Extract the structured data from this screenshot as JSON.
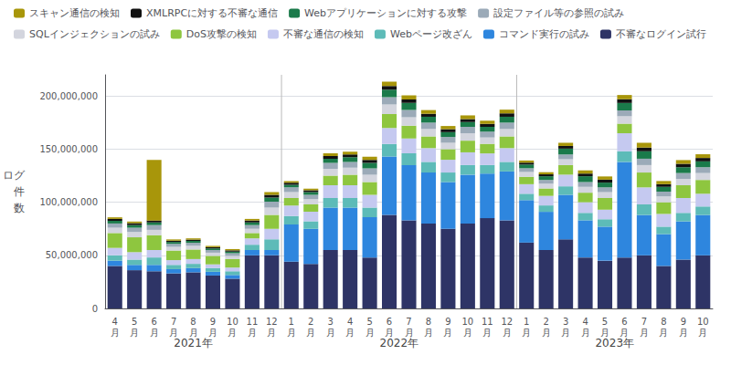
{
  "chart_data": {
    "type": "bar",
    "stacked": true,
    "ylabel": "ログ\n件\n数",
    "categories": [
      "4\n月",
      "5\n月",
      "6\n月",
      "7\n月",
      "8\n月",
      "9\n月",
      "10\n月",
      "11\n月",
      "12\n月",
      "1\n月",
      "2\n月",
      "3\n月",
      "4\n月",
      "5\n月",
      "6\n月",
      "7\n月",
      "8\n月",
      "9\n月",
      "10\n月",
      "11\n月",
      "12\n月",
      "1\n月",
      "2\n月",
      "3\n月",
      "4\n月",
      "5\n月",
      "6\n月",
      "7\n月",
      "8\n月",
      "9\n月",
      "10\n月"
    ],
    "annotations": [
      {
        "text": "2021年",
        "start": 0,
        "end": 9
      },
      {
        "text": "2022年",
        "start": 9,
        "end": 21
      },
      {
        "text": "2023年",
        "start": 21,
        "end": 31
      }
    ],
    "series": [
      {
        "name": "不審なログイン試行",
        "color": "#2e3466",
        "values": [
          40000000,
          36000000,
          35000000,
          33000000,
          34000000,
          31000000,
          28000000,
          50000000,
          50000000,
          44000000,
          42000000,
          55000000,
          55000000,
          48000000,
          88000000,
          83000000,
          80000000,
          75000000,
          80000000,
          85000000,
          83000000,
          62000000,
          55000000,
          65000000,
          48000000,
          45000000,
          48000000,
          50000000,
          40000000,
          46000000,
          50000000
        ]
      },
      {
        "name": "コマンド実行の試み",
        "color": "#2e86de",
        "values": [
          5000000,
          5000000,
          6000000,
          4000000,
          4000000,
          3500000,
          3500000,
          5000000,
          5000000,
          35000000,
          33000000,
          40000000,
          40000000,
          38000000,
          55000000,
          52000000,
          48000000,
          44000000,
          46000000,
          42000000,
          46000000,
          40000000,
          36000000,
          42000000,
          35000000,
          32000000,
          90000000,
          38000000,
          30000000,
          36000000,
          38000000
        ]
      },
      {
        "name": "Webページ改ざん",
        "color": "#5dbbb8",
        "values": [
          5000000,
          5000000,
          7000000,
          4000000,
          4000000,
          3500000,
          3500000,
          5000000,
          10000000,
          8000000,
          7000000,
          9000000,
          9000000,
          9000000,
          12000000,
          11000000,
          10000000,
          9000000,
          9000000,
          8000000,
          9000000,
          6000000,
          6000000,
          8000000,
          7000000,
          7000000,
          10000000,
          10000000,
          7000000,
          8000000,
          8000000
        ]
      },
      {
        "name": "不審な通信の検知",
        "color": "#c5c9f0",
        "values": [
          7000000,
          7000000,
          7000000,
          4500000,
          4500000,
          3500000,
          3500000,
          6000000,
          10000000,
          10000000,
          9000000,
          12000000,
          12000000,
          12000000,
          15000000,
          14000000,
          13000000,
          12000000,
          12000000,
          11000000,
          13000000,
          9000000,
          9000000,
          11000000,
          10000000,
          9000000,
          17000000,
          16000000,
          12000000,
          14000000,
          12000000
        ]
      },
      {
        "name": "DoS攻撃の検知",
        "color": "#8ec63f",
        "values": [
          14000000,
          14000000,
          14000000,
          9000000,
          9000000,
          8000000,
          8000000,
          5000000,
          13000000,
          7000000,
          7000000,
          9000000,
          10000000,
          12000000,
          13000000,
          12000000,
          11000000,
          10000000,
          11000000,
          9000000,
          11000000,
          7000000,
          7000000,
          9000000,
          9000000,
          11000000,
          9000000,
          14000000,
          11000000,
          12000000,
          13000000
        ]
      },
      {
        "name": "SQLインジェクションの試み",
        "color": "#d3d5de",
        "values": [
          5000000,
          5000000,
          5000000,
          3500000,
          3500000,
          3000000,
          3000000,
          4000000,
          7000000,
          5500000,
          5000000,
          6500000,
          6500000,
          7000000,
          9000000,
          8000000,
          7000000,
          6000000,
          7000000,
          6000000,
          7000000,
          4500000,
          4500000,
          5500000,
          5500000,
          5500000,
          7000000,
          7000000,
          5500000,
          6000000,
          6500000
        ]
      },
      {
        "name": "設定ファイル等の参照の試み",
        "color": "#9baab8",
        "values": [
          4000000,
          4000000,
          4500000,
          2800000,
          2800000,
          2500000,
          2500000,
          3500000,
          5500000,
          4500000,
          4000000,
          5500000,
          5500000,
          6000000,
          7000000,
          7000000,
          6000000,
          5500000,
          6000000,
          5500000,
          6000000,
          3500000,
          3500000,
          4500000,
          4500000,
          4500000,
          5500000,
          6000000,
          4500000,
          5500000,
          5500000
        ]
      },
      {
        "name": "Webアプリケーションに対する攻撃",
        "color": "#1a7a4a",
        "values": [
          2500000,
          2500000,
          2500000,
          1800000,
          1800000,
          1500000,
          1500000,
          2500000,
          4000000,
          2500000,
          2500000,
          4000000,
          4500000,
          5000000,
          7000000,
          6500000,
          5500000,
          4500000,
          4500000,
          4500000,
          5500000,
          3500000,
          3500000,
          5500000,
          5500000,
          4500000,
          7000000,
          7000000,
          4500000,
          5500000,
          5500000
        ]
      },
      {
        "name": "XMLRPCに対する不審な通信",
        "color": "#111111",
        "values": [
          1800000,
          1800000,
          1800000,
          1200000,
          1200000,
          1200000,
          1200000,
          1800000,
          2500000,
          1800000,
          1800000,
          2500000,
          2500000,
          2800000,
          3500000,
          3200000,
          2800000,
          2800000,
          2800000,
          2800000,
          3200000,
          1800000,
          1800000,
          2500000,
          2500000,
          2800000,
          3500000,
          3500000,
          2500000,
          3200000,
          3200000
        ]
      },
      {
        "name": "スキャン通信の検知",
        "color": "#a8960a",
        "values": [
          1500000,
          1500000,
          57000000,
          1200000,
          1200000,
          1200000,
          1200000,
          1500000,
          2500000,
          1500000,
          1500000,
          2500000,
          2500000,
          3000000,
          4000000,
          4000000,
          3500000,
          3000000,
          3500000,
          3000000,
          3500000,
          2000000,
          2000000,
          3000000,
          3000000,
          3000000,
          4000000,
          4500000,
          3000000,
          3500000,
          3500000
        ]
      }
    ],
    "ylim": [
      0,
      220000000
    ],
    "yticks": [
      0,
      {
        "value": 50000000,
        "label": "50,000,000"
      },
      {
        "value": 100000000,
        "label": "100,000,000"
      },
      {
        "value": 150000000,
        "label": "150,000,000"
      },
      {
        "value": 200000000,
        "label": "200,000,000"
      }
    ],
    "grid": true,
    "legend": "upper left"
  }
}
